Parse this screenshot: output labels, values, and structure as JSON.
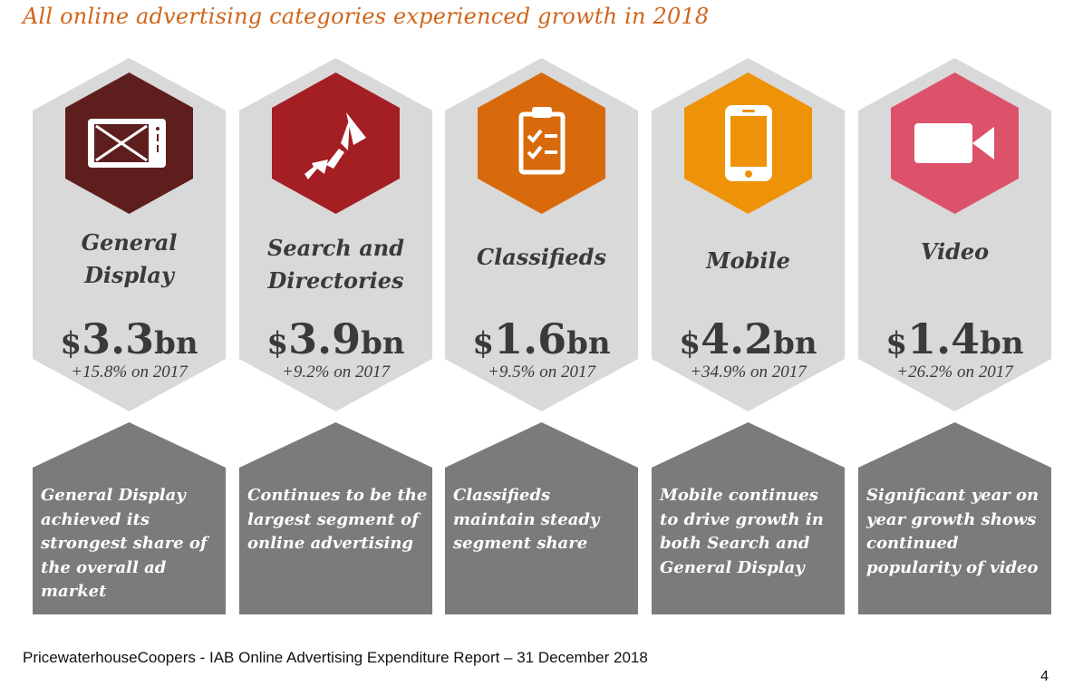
{
  "title": "All online advertising categories experienced growth in 2018",
  "categories": [
    {
      "name_lines": [
        "General",
        "Display"
      ],
      "amount_prefix": "$",
      "amount_number": "3.3",
      "amount_suffix": "bn",
      "growth": "+15.8% on 2017",
      "description": "General Display achieved its strongest share of the overall ad market",
      "icon": "display-advert-icon",
      "icon_color": "#5f1e1e"
    },
    {
      "name_lines": [
        "Search and",
        "Directories"
      ],
      "amount_prefix": "$",
      "amount_number": "3.9",
      "amount_suffix": "bn",
      "growth": "+9.2% on 2017",
      "description": "Continues to be the largest segment of online advertising",
      "icon": "search-pointer-icon",
      "icon_color": "#a41f23"
    },
    {
      "name_lines": [
        "Classifieds"
      ],
      "amount_prefix": "$",
      "amount_number": "1.6",
      "amount_suffix": "bn",
      "growth": "+9.5% on 2017",
      "description": "Classifieds maintain steady segment share",
      "icon": "clipboard-checklist-icon",
      "icon_color": "#d86a0c"
    },
    {
      "name_lines": [
        "Mobile"
      ],
      "amount_prefix": "$",
      "amount_number": "4.2",
      "amount_suffix": "bn",
      "growth": "+34.9% on 2017",
      "description": "Mobile continues to drive growth in both Search and General Display",
      "icon": "smartphone-icon",
      "icon_color": "#ee9208"
    },
    {
      "name_lines": [
        "Video"
      ],
      "amount_prefix": "$",
      "amount_number": "1.4",
      "amount_suffix": "bn",
      "growth": "+26.2% on 2017",
      "description": "Significant year on year growth shows continued popularity of video",
      "icon": "video-camera-icon",
      "icon_color": "#dd526b"
    }
  ],
  "colors": {
    "title": "#d0651a",
    "panel_light": "#d9d9d9",
    "panel_dark": "#7b7b7b",
    "text_dark": "#3a3a3a"
  },
  "footer": {
    "source": "PricewaterhouseCoopers - IAB Online Advertising Expenditure Report – 31 December 2018",
    "page_number": "4"
  }
}
